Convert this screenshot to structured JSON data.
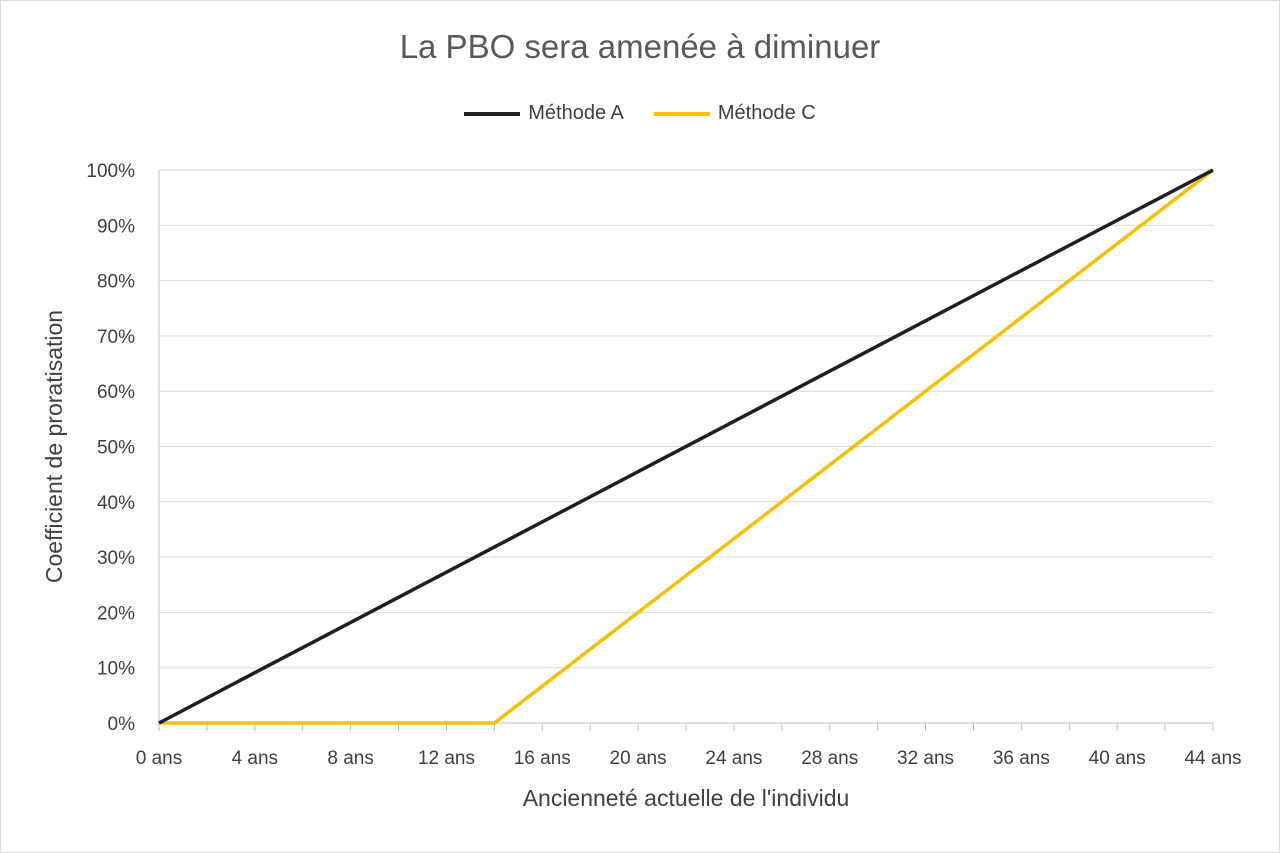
{
  "chart_data": {
    "type": "line",
    "title": "La PBO sera amenée à diminuer",
    "xlabel": "Ancienneté actuelle de l'individu",
    "ylabel": "Coefficient de proratisation",
    "xlim": [
      0,
      44
    ],
    "ylim": [
      0,
      100
    ],
    "x_ticks": [
      "0 ans",
      "4 ans",
      "8 ans",
      "12 ans",
      "16 ans",
      "20 ans",
      "24 ans",
      "28 ans",
      "32 ans",
      "36 ans",
      "40 ans",
      "44 ans"
    ],
    "y_ticks": [
      "0%",
      "10%",
      "20%",
      "30%",
      "40%",
      "50%",
      "60%",
      "70%",
      "80%",
      "90%",
      "100%"
    ],
    "grid": "horizontal",
    "legend": "top-center",
    "series": [
      {
        "name": "Méthode A",
        "color": "#1f1f1f",
        "x": [
          0,
          44
        ],
        "y": [
          0,
          100
        ]
      },
      {
        "name": "Méthode C",
        "color": "#f5c000",
        "x": [
          0,
          14,
          44
        ],
        "y": [
          0,
          0,
          100
        ]
      }
    ]
  }
}
